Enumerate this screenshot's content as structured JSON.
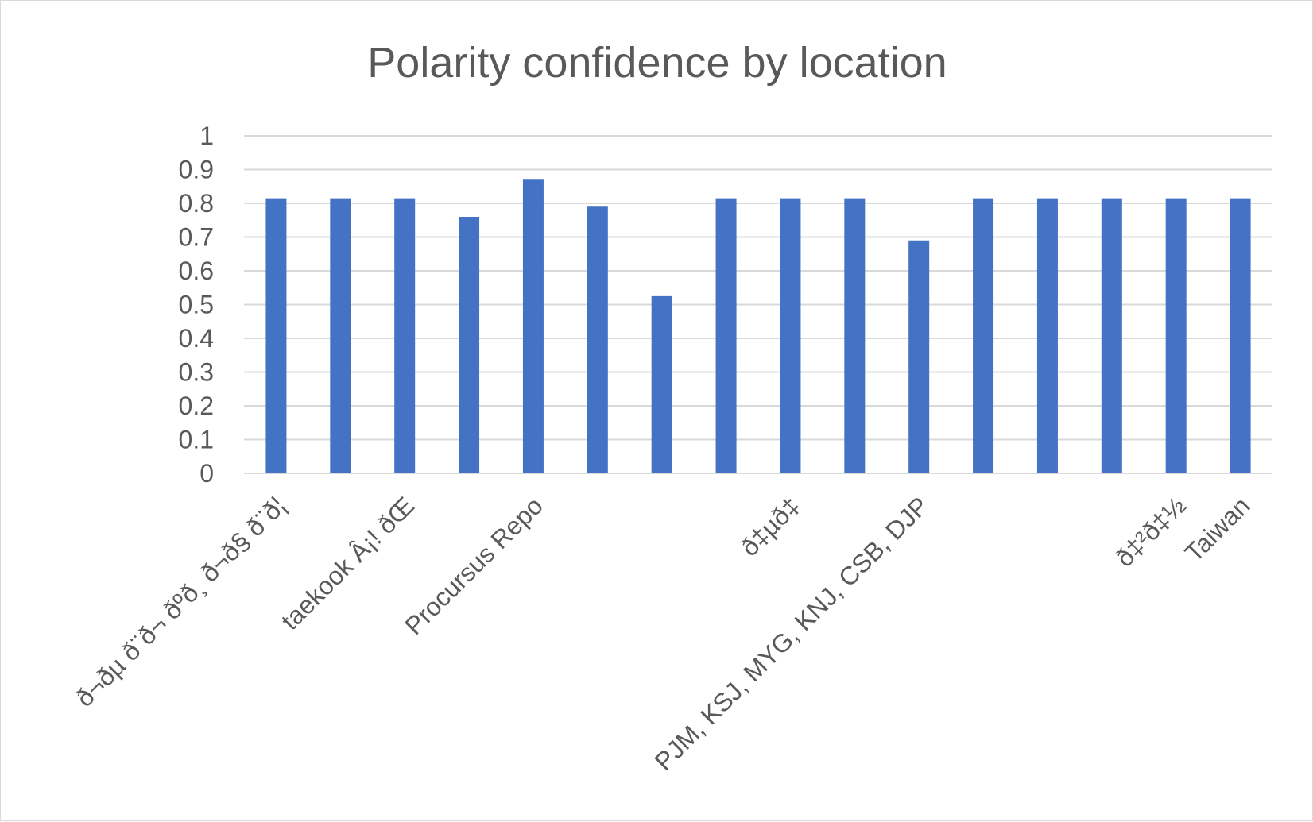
{
  "chart_data": {
    "type": "bar",
    "title": "Polarity confidence by location",
    "xlabel": "",
    "ylabel": "",
    "ylim": [
      0,
      1
    ],
    "yticks": [
      "0",
      "0.1",
      "0.2",
      "0.3",
      "0.4",
      "0.5",
      "0.6",
      "0.7",
      "0.8",
      "0.9",
      "1"
    ],
    "grid": true,
    "legend": "none",
    "bar_color": "#4472c4",
    "categories": [
      "ð¬ðµ ð¨ð¬ ðºð¸ ð¬ð§ ð¨ð¦",
      "",
      "taekook Â¡! ðŒ",
      "",
      "Procursus Repo",
      "",
      "",
      "",
      "ð‡µð‡",
      "",
      "PJM, KSJ, MYG, KNJ, CSB, DJP",
      "",
      "",
      "",
      "ð‡²ð‡½",
      "Taiwan"
    ],
    "values": [
      0.815,
      0.815,
      0.815,
      0.76,
      0.87,
      0.79,
      0.525,
      0.815,
      0.815,
      0.815,
      0.69,
      0.815,
      0.815,
      0.815,
      0.815,
      0.815
    ]
  }
}
